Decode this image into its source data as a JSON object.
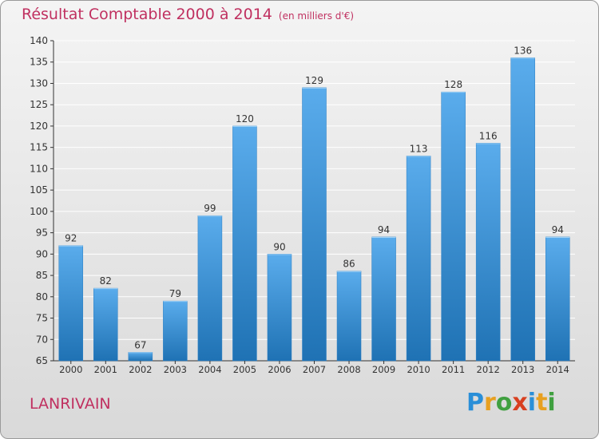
{
  "header": {
    "title": "Résultat Comptable 2000 à 2014",
    "subtitle": "(en milliers d'€)"
  },
  "footer": {
    "commune": "LANRIVAIN",
    "logo_text": "Proxiti"
  },
  "colors": {
    "title": "#c03060",
    "bar_light": "#5aacec",
    "bar_dark": "#1f72b4",
    "axis": "#333333",
    "grid": "#ffffff"
  },
  "chart_data": {
    "type": "bar",
    "title": "Résultat Comptable 2000 à 2014",
    "subtitle": "(en milliers d'€)",
    "xlabel": "",
    "ylabel": "",
    "categories": [
      "2000",
      "2001",
      "2002",
      "2003",
      "2004",
      "2005",
      "2006",
      "2007",
      "2008",
      "2009",
      "2010",
      "2011",
      "2012",
      "2013",
      "2014"
    ],
    "values": [
      92,
      82,
      67,
      79,
      99,
      120,
      90,
      129,
      86,
      94,
      113,
      128,
      116,
      136,
      94
    ],
    "ylim": [
      65,
      140
    ],
    "yticks": [
      65,
      70,
      75,
      80,
      85,
      90,
      95,
      100,
      105,
      110,
      115,
      120,
      125,
      130,
      135,
      140
    ],
    "grid": true,
    "legend": "none"
  }
}
